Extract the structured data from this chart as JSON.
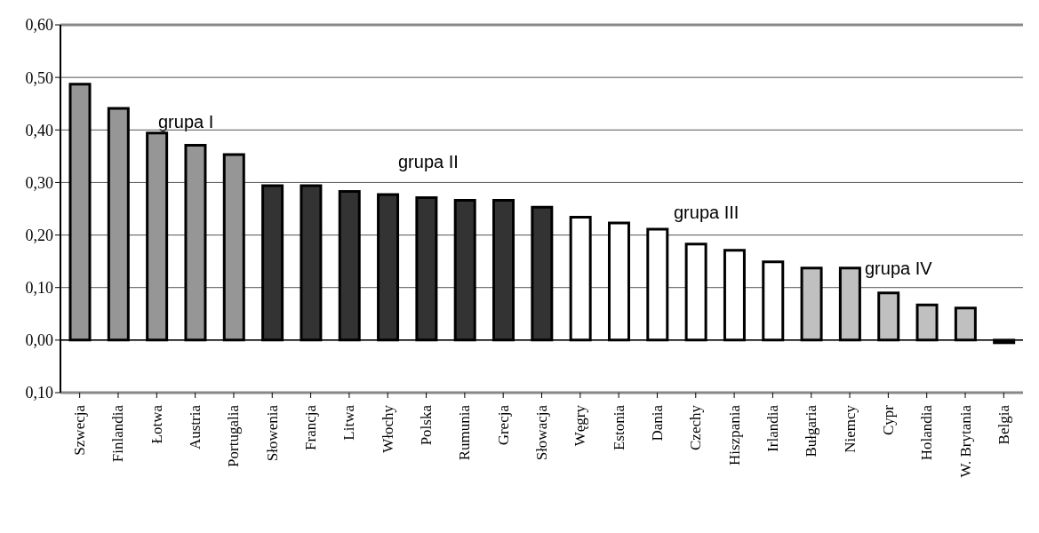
{
  "chart_data": {
    "type": "bar",
    "categories": [
      "Szwecja",
      "Finlandia",
      "Łotwa",
      "Austria",
      "Portugalia",
      "Słowenia",
      "Francja",
      "Litwa",
      "Włochy",
      "Polska",
      "Rumunia",
      "Grecja",
      "Słowacja",
      "Węgry",
      "Estonia",
      "Dania",
      "Czechy",
      "Hiszpania",
      "Irlandia",
      "Bułgaria",
      "Niemcy",
      "Cypr",
      "Holandia",
      "W. Brytania",
      "Belgia"
    ],
    "values": [
      0.487,
      0.441,
      0.394,
      0.371,
      0.353,
      0.294,
      0.294,
      0.283,
      0.277,
      0.271,
      0.266,
      0.266,
      0.253,
      0.234,
      0.223,
      0.211,
      0.183,
      0.171,
      0.149,
      0.137,
      0.137,
      0.09,
      0.067,
      0.061,
      -0.005
    ],
    "colors": [
      "#969696",
      "#969696",
      "#969696",
      "#969696",
      "#969696",
      "#333333",
      "#333333",
      "#333333",
      "#333333",
      "#333333",
      "#333333",
      "#333333",
      "#333333",
      "#ffffff",
      "#ffffff",
      "#ffffff",
      "#ffffff",
      "#ffffff",
      "#ffffff",
      "#c0c0c0",
      "#c0c0c0",
      "#c0c0c0",
      "#c0c0c0",
      "#c0c0c0",
      "#000000"
    ],
    "ylim": [
      -0.1,
      0.6
    ],
    "yticks": [
      {
        "value": -0.1,
        "label": "0,10"
      },
      {
        "value": 0,
        "label": "0,00"
      },
      {
        "value": 0.1,
        "label": "0,10"
      },
      {
        "value": 0.2,
        "label": "0,20"
      },
      {
        "value": 0.3,
        "label": "0,30"
      },
      {
        "value": 0.4,
        "label": "0,40"
      },
      {
        "value": 0.5,
        "label": "0,50"
      },
      {
        "value": 0.6,
        "label": "0,60"
      }
    ],
    "grid": "y",
    "annotations": [
      "grupa I",
      "grupa II",
      "grupa III",
      "grupa IV"
    ]
  }
}
